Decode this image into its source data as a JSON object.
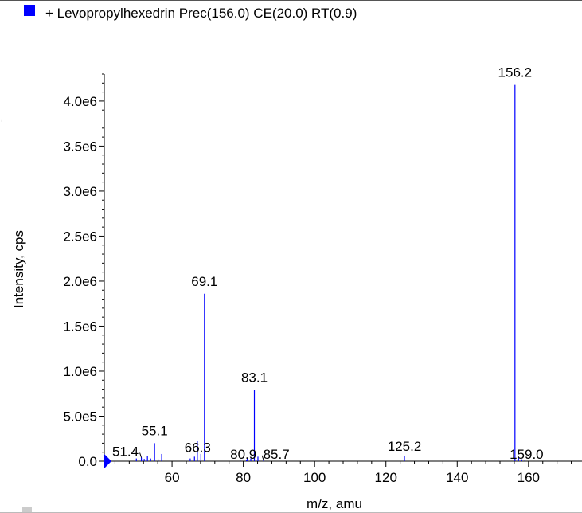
{
  "legend": {
    "label": "+ Levopropylhexedrin Prec(156.0) CE(20.0) RT(0.9)",
    "color": "#0000ff"
  },
  "colors": {
    "series": "#0000ff",
    "axis": "#000000"
  },
  "chart_data": {
    "type": "bar",
    "title": "+ Levopropylhexedrin Prec(156.0) CE(20.0) RT(0.9)",
    "xlabel": "m/z, amu",
    "ylabel": "Intensity, cps",
    "xlim": [
      41,
      175
    ],
    "ylim": [
      0,
      4300000
    ],
    "xticks": [
      60,
      80,
      100,
      120,
      140,
      160
    ],
    "xtick_labels": [
      "60",
      "80",
      "100",
      "120",
      "140",
      "160"
    ],
    "yticks": [
      0,
      500000,
      1000000,
      1500000,
      2000000,
      2500000,
      3000000,
      3500000,
      4000000
    ],
    "ytick_labels": [
      "0.0",
      "5.0e5",
      "1.0e6",
      "1.5e6",
      "2.0e6",
      "2.5e6",
      "3.0e6",
      "3.5e6",
      "4.0e6"
    ],
    "grid": false,
    "legend_position": "top-left",
    "peaks": [
      {
        "mz": 50.0,
        "intensity": 30000
      },
      {
        "mz": 51.4,
        "intensity": 40000
      },
      {
        "mz": 52.2,
        "intensity": 25000
      },
      {
        "mz": 53.1,
        "intensity": 60000
      },
      {
        "mz": 54.0,
        "intensity": 30000
      },
      {
        "mz": 55.1,
        "intensity": 200000
      },
      {
        "mz": 56.1,
        "intensity": 20000
      },
      {
        "mz": 57.1,
        "intensity": 80000
      },
      {
        "mz": 65.1,
        "intensity": 30000
      },
      {
        "mz": 66.3,
        "intensity": 50000
      },
      {
        "mz": 67.1,
        "intensity": 230000
      },
      {
        "mz": 68.1,
        "intensity": 80000
      },
      {
        "mz": 69.1,
        "intensity": 1860000
      },
      {
        "mz": 79.1,
        "intensity": 20000
      },
      {
        "mz": 80.9,
        "intensity": 10000
      },
      {
        "mz": 81.1,
        "intensity": 30000
      },
      {
        "mz": 82.1,
        "intensity": 30000
      },
      {
        "mz": 83.1,
        "intensity": 790000
      },
      {
        "mz": 84.1,
        "intensity": 50000
      },
      {
        "mz": 85.7,
        "intensity": 10000
      },
      {
        "mz": 125.2,
        "intensity": 60000
      },
      {
        "mz": 156.2,
        "intensity": 4180000
      },
      {
        "mz": 157.2,
        "intensity": 40000
      },
      {
        "mz": 158.1,
        "intensity": 20000
      },
      {
        "mz": 159.0,
        "intensity": 10000
      }
    ],
    "annotations": [
      {
        "text": "156.2",
        "mz": 156.2,
        "intensity": 4180000,
        "label_dx": 0,
        "label_dy": -10
      },
      {
        "text": "69.1",
        "mz": 69.1,
        "intensity": 1860000,
        "label_dx": 0,
        "label_dy": -10
      },
      {
        "text": "83.1",
        "mz": 83.1,
        "intensity": 790000,
        "label_dx": 0,
        "label_dy": -10
      },
      {
        "text": "55.1",
        "mz": 55.1,
        "intensity": 200000,
        "label_dx": 0,
        "label_dy": -10
      },
      {
        "text": "66.3",
        "mz": 66.3,
        "intensity": 50000,
        "label_dx": 4,
        "label_dy": -6
      },
      {
        "text": "51.4",
        "mz": 51.4,
        "intensity": 40000,
        "label_dx": -20,
        "label_dy": -2,
        "leader": true
      },
      {
        "text": "80.9",
        "mz": 80.9,
        "intensity": 10000,
        "label_dx": -4,
        "label_dy": -2
      },
      {
        "text": "85.7",
        "mz": 85.7,
        "intensity": 10000,
        "label_dx": 16,
        "label_dy": -2,
        "leader": true
      },
      {
        "text": "125.2",
        "mz": 125.2,
        "intensity": 60000,
        "label_dx": 0,
        "label_dy": -6
      },
      {
        "text": "159.0",
        "mz": 159.0,
        "intensity": 10000,
        "label_dx": 2,
        "label_dy": -2
      }
    ]
  }
}
